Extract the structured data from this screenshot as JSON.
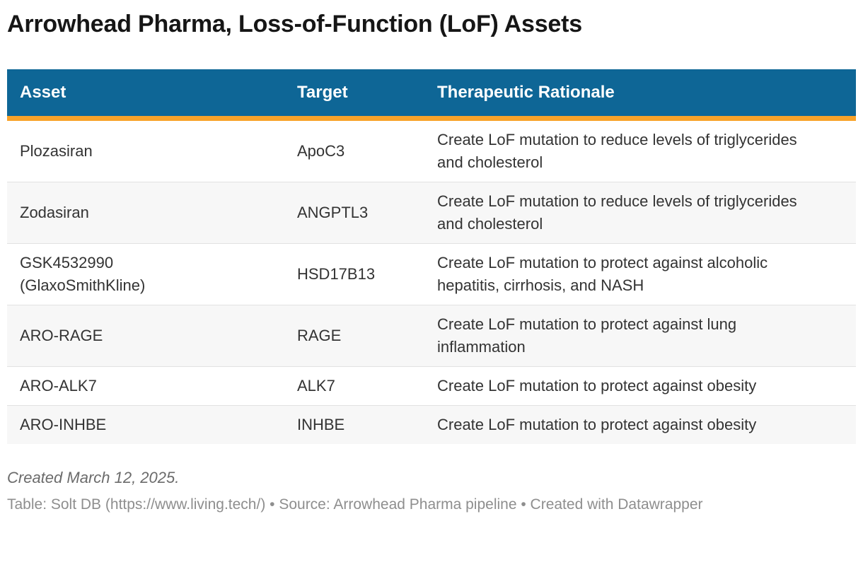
{
  "title": "Arrowhead Pharma, Loss-of-Function (LoF) Assets",
  "table": {
    "columns": [
      "Asset",
      "Target",
      "Therapeutic Rationale"
    ],
    "rows": [
      {
        "asset": "Plozasiran",
        "target": "ApoC3",
        "rationale": "Create LoF mutation to reduce levels of triglycerides and cholesterol"
      },
      {
        "asset": "Zodasiran",
        "target": "ANGPTL3",
        "rationale": "Create LoF mutation to reduce levels of triglycerides and cholesterol"
      },
      {
        "asset": "GSK4532990 (GlaxoSmithKline)",
        "target": "HSD17B13",
        "rationale": "Create LoF mutation to protect against alcoholic hepatitis, cirrhosis, and NASH"
      },
      {
        "asset": "ARO-RAGE",
        "target": "RAGE",
        "rationale": "Create LoF mutation to protect against lung inflammation"
      },
      {
        "asset": "ARO-ALK7",
        "target": "ALK7",
        "rationale": "Create LoF mutation to protect against obesity"
      },
      {
        "asset": "ARO-INHBE",
        "target": "INHBE",
        "rationale": "Create LoF mutation to protect against obesity"
      }
    ]
  },
  "footer": {
    "created_note": "Created March 12, 2025.",
    "attribution": "Table: Solt DB (https://www.living.tech/) • Source: Arrowhead Pharma pipeline • Created with Datawrapper"
  },
  "colors": {
    "header_background": "#0e6696",
    "header_accent_bar": "#f8a229",
    "alt_row_background": "#f7f7f7",
    "body_text": "#333333",
    "attribution_text": "#8e8e8e"
  }
}
